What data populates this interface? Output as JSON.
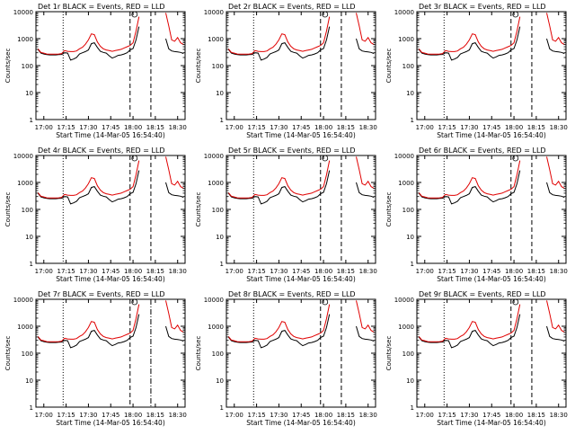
{
  "figure": {
    "title_template": "{det} BLACK = Events, RED = LLD",
    "xlabel": "Start Time (14-Mar-05 16:54:40)",
    "ylabel": "Counts/sec",
    "colors": {
      "events": "#000000",
      "lld": "#e00000",
      "axes": "#000000",
      "background": "#ffffff"
    }
  },
  "chart_data": [
    {
      "type": "line",
      "title": "Det 1r BLACK = Events, RED = LLD",
      "detector": "Det 1r",
      "xlabel": "Start Time (14-Mar-05 16:54:40)",
      "ylabel": "Counts/sec",
      "x_ticks": [
        "17:00",
        "17:15",
        "17:30",
        "17:45",
        "18:00",
        "18:15",
        "18:30"
      ],
      "y_ticks": [
        "1",
        "10",
        "100",
        "1000",
        "10000"
      ],
      "ylim": [
        1,
        10000
      ],
      "y_scale": "log",
      "grid": false,
      "series": [
        {
          "name": "BLACK = Events",
          "color": "#000000"
        },
        {
          "name": "RED = LLD",
          "color": "#e00000"
        }
      ],
      "markers": {
        "dotted": [
          "17:13"
        ],
        "dashed": [
          "17:58",
          "18:12"
        ],
        "dash_dot": []
      }
    },
    {
      "type": "line",
      "title": "Det 2r BLACK = Events, RED = LLD",
      "detector": "Det 2r",
      "xlabel": "Start Time (14-Mar-05 16:54:40)",
      "ylabel": "Counts/sec",
      "x_ticks": [
        "17:00",
        "17:15",
        "17:30",
        "17:45",
        "18:00",
        "18:15",
        "18:30"
      ],
      "y_ticks": [
        "1",
        "10",
        "100",
        "1000",
        "10000"
      ],
      "ylim": [
        1,
        10000
      ],
      "y_scale": "log",
      "grid": false,
      "series": [
        {
          "name": "BLACK = Events",
          "color": "#000000"
        },
        {
          "name": "RED = LLD",
          "color": "#e00000"
        }
      ],
      "markers": {
        "dotted": [
          "17:13"
        ],
        "dashed": [
          "17:58",
          "18:12"
        ],
        "dash_dot": []
      }
    },
    {
      "type": "line",
      "title": "Det 3r BLACK = Events, RED = LLD",
      "detector": "Det 3r",
      "xlabel": "Start Time (14-Mar-05 16:54:40)",
      "ylabel": "Counts/sec",
      "x_ticks": [
        "17:00",
        "17:15",
        "17:30",
        "17:45",
        "18:00",
        "18:15",
        "18:30"
      ],
      "y_ticks": [
        "1",
        "10",
        "100",
        "1000",
        "10000"
      ],
      "ylim": [
        1,
        10000
      ],
      "y_scale": "log",
      "grid": false,
      "series": [
        {
          "name": "BLACK = Events",
          "color": "#000000"
        },
        {
          "name": "RED = LLD",
          "color": "#e00000"
        }
      ],
      "markers": {
        "dotted": [
          "17:13"
        ],
        "dashed": [
          "17:58",
          "18:12"
        ],
        "dash_dot": []
      }
    },
    {
      "type": "line",
      "title": "Det 4r BLACK = Events, RED = LLD",
      "detector": "Det 4r",
      "xlabel": "Start Time (14-Mar-05 16:54:40)",
      "ylabel": "Counts/sec",
      "x_ticks": [
        "17:00",
        "17:15",
        "17:30",
        "17:45",
        "18:00",
        "18:15",
        "18:30"
      ],
      "y_ticks": [
        "1",
        "10",
        "100",
        "1000",
        "10000"
      ],
      "ylim": [
        1,
        10000
      ],
      "y_scale": "log",
      "grid": false,
      "series": [
        {
          "name": "BLACK = Events",
          "color": "#000000"
        },
        {
          "name": "RED = LLD",
          "color": "#e00000"
        }
      ],
      "markers": {
        "dotted": [
          "17:13"
        ],
        "dashed": [
          "17:58",
          "18:12"
        ],
        "dash_dot": []
      }
    },
    {
      "type": "line",
      "title": "Det 5r BLACK = Events, RED = LLD",
      "detector": "Det 5r",
      "xlabel": "Start Time (14-Mar-05 16:54:40)",
      "ylabel": "Counts/sec",
      "x_ticks": [
        "17:00",
        "17:15",
        "17:30",
        "17:45",
        "18:00",
        "18:15",
        "18:30"
      ],
      "y_ticks": [
        "1",
        "10",
        "100",
        "1000",
        "10000"
      ],
      "ylim": [
        1,
        10000
      ],
      "y_scale": "log",
      "grid": false,
      "series": [
        {
          "name": "BLACK = Events",
          "color": "#000000"
        },
        {
          "name": "RED = LLD",
          "color": "#e00000"
        }
      ],
      "markers": {
        "dotted": [
          "17:13"
        ],
        "dashed": [
          "17:58",
          "18:12"
        ],
        "dash_dot": []
      }
    },
    {
      "type": "line",
      "title": "Det 6r BLACK = Events, RED = LLD",
      "detector": "Det 6r",
      "xlabel": "Start Time (14-Mar-05 16:54:40)",
      "ylabel": "Counts/sec",
      "x_ticks": [
        "17:00",
        "17:15",
        "17:30",
        "17:45",
        "18:00",
        "18:15",
        "18:30"
      ],
      "y_ticks": [
        "1",
        "10",
        "100",
        "1000",
        "10000"
      ],
      "ylim": [
        1,
        10000
      ],
      "y_scale": "log",
      "grid": false,
      "series": [
        {
          "name": "BLACK = Events",
          "color": "#000000"
        },
        {
          "name": "RED = LLD",
          "color": "#e00000"
        }
      ],
      "markers": {
        "dotted": [
          "17:13"
        ],
        "dashed": [
          "17:58",
          "18:12"
        ],
        "dash_dot": []
      }
    },
    {
      "type": "line",
      "title": "Det 7r BLACK = Events, RED = LLD",
      "detector": "Det 7r",
      "xlabel": "Start Time (14-Mar-05 16:54:40)",
      "ylabel": "Counts/sec",
      "x_ticks": [
        "17:00",
        "17:15",
        "17:30",
        "17:45",
        "18:00",
        "18:15",
        "18:30"
      ],
      "y_ticks": [
        "1",
        "10",
        "100",
        "1000",
        "10000"
      ],
      "ylim": [
        1,
        10000
      ],
      "y_scale": "log",
      "grid": false,
      "series": [
        {
          "name": "BLACK = Events",
          "color": "#000000"
        },
        {
          "name": "RED = LLD",
          "color": "#e00000"
        }
      ],
      "markers": {
        "dotted": [
          "17:13"
        ],
        "dashed": [
          "17:58"
        ],
        "dash_dot": [
          "18:12"
        ]
      }
    },
    {
      "type": "line",
      "title": "Det 8r BLACK = Events, RED = LLD",
      "detector": "Det 8r",
      "xlabel": "Start Time (14-Mar-05 16:54:40)",
      "ylabel": "Counts/sec",
      "x_ticks": [
        "17:00",
        "17:15",
        "17:30",
        "17:45",
        "18:00",
        "18:15",
        "18:30"
      ],
      "y_ticks": [
        "1",
        "10",
        "100",
        "1000",
        "10000"
      ],
      "ylim": [
        1,
        10000
      ],
      "y_scale": "log",
      "grid": false,
      "series": [
        {
          "name": "BLACK = Events",
          "color": "#000000"
        },
        {
          "name": "RED = LLD",
          "color": "#e00000"
        }
      ],
      "markers": {
        "dotted": [
          "17:13"
        ],
        "dashed": [
          "17:58",
          "18:12"
        ],
        "dash_dot": []
      }
    },
    {
      "type": "line",
      "title": "Det 9r BLACK = Events, RED = LLD",
      "detector": "Det 9r",
      "xlabel": "Start Time (14-Mar-05 16:54:40)",
      "ylabel": "Counts/sec",
      "x_ticks": [
        "17:00",
        "17:15",
        "17:30",
        "17:45",
        "18:00",
        "18:15",
        "18:30"
      ],
      "y_ticks": [
        "1",
        "10",
        "100",
        "1000",
        "10000"
      ],
      "ylim": [
        1,
        10000
      ],
      "y_scale": "log",
      "grid": false,
      "series": [
        {
          "name": "BLACK = Events",
          "color": "#000000"
        },
        {
          "name": "RED = LLD",
          "color": "#e00000"
        }
      ],
      "markers": {
        "dotted": [
          "17:13"
        ],
        "dashed": [
          "17:58",
          "18:12"
        ],
        "dash_dot": []
      }
    }
  ],
  "series_values": {
    "x": [
      "16:56",
      "16:58",
      "17:00",
      "17:02",
      "17:04",
      "17:06",
      "17:08",
      "17:10",
      "17:12",
      "17:14",
      "17:16",
      "17:18",
      "17:20",
      "17:22",
      "17:24",
      "17:26",
      "17:28",
      "17:30",
      "17:32",
      "17:34",
      "17:36",
      "17:38",
      "17:40",
      "17:42",
      "17:44",
      "17:46",
      "17:48",
      "17:50",
      "17:52",
      "17:54",
      "17:56",
      "17:58",
      "18:00",
      "18:02",
      "18:04",
      "18:06",
      "18:08",
      "18:10",
      "18:12",
      "18:14",
      "18:16",
      "18:18",
      "18:20",
      "18:22",
      "18:24",
      "18:26",
      "18:28",
      "18:30",
      "18:32",
      "18:34"
    ],
    "events": [
      400,
      290,
      270,
      255,
      250,
      250,
      250,
      255,
      260,
      300,
      290,
      160,
      175,
      200,
      270,
      300,
      330,
      380,
      650,
      700,
      470,
      340,
      310,
      290,
      230,
      190,
      210,
      240,
      250,
      270,
      300,
      380,
      430,
      900,
      2800,
      null,
      null,
      null,
      null,
      null,
      null,
      null,
      null,
      1000,
      420,
      350,
      330,
      320,
      310,
      280
    ],
    "lld": [
      420,
      310,
      290,
      270,
      265,
      265,
      265,
      270,
      280,
      360,
      340,
      330,
      330,
      350,
      420,
      480,
      620,
      900,
      1500,
      1400,
      750,
      520,
      420,
      380,
      360,
      340,
      360,
      380,
      400,
      450,
      500,
      560,
      700,
      1900,
      6500,
      null,
      null,
      null,
      null,
      null,
      null,
      null,
      null,
      9000,
      3000,
      900,
      800,
      1100,
      700,
      600
    ]
  }
}
